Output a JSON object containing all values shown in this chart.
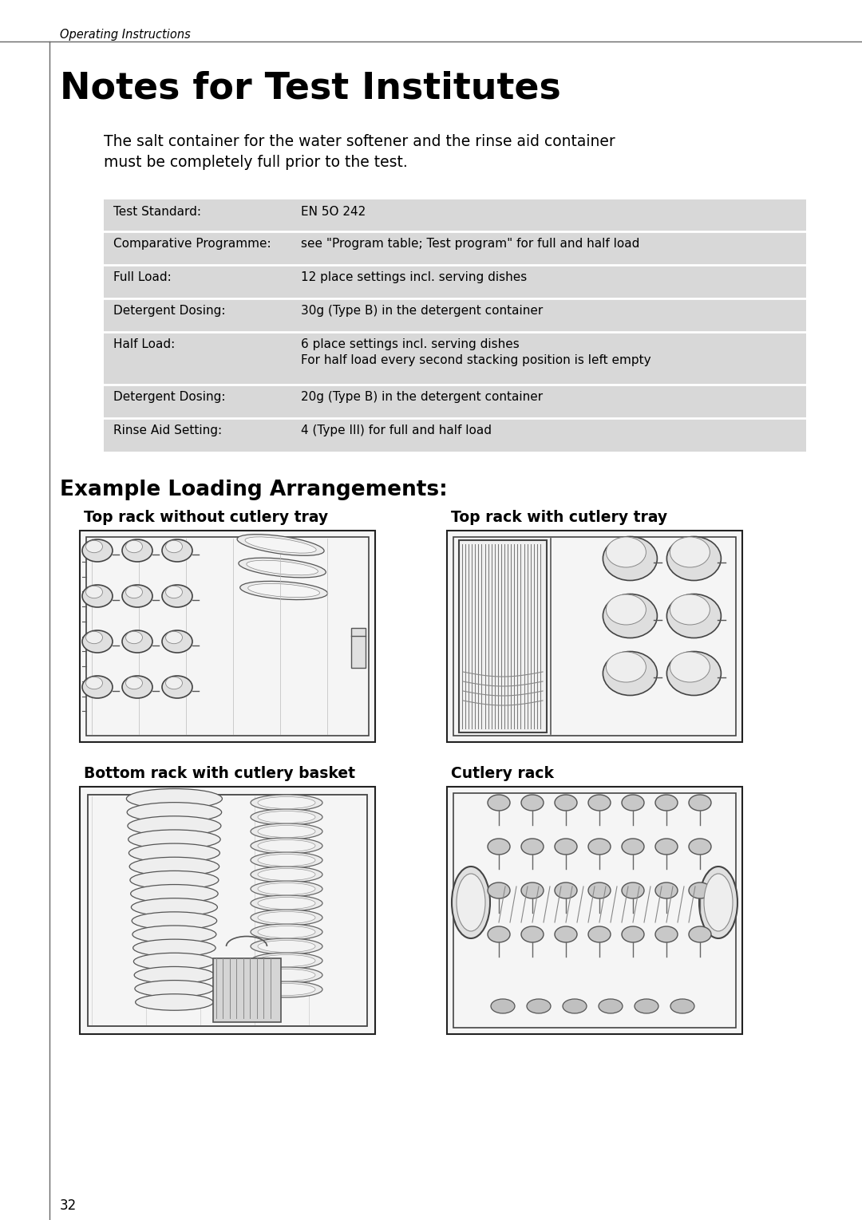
{
  "page_bg": "#ffffff",
  "header_text": "Operating Instructions",
  "title": "Notes for Test Institutes",
  "intro_line1": "The salt container for the water softener and the rinse aid container",
  "intro_line2": "must be completely full prior to the test.",
  "table_rows": [
    [
      "Test Standard:",
      "EN 5O 242"
    ],
    [
      "Comparative Programme:",
      "see \"Program table; Test program\" for full and half load"
    ],
    [
      "Full Load:",
      "12 place settings incl. serving dishes"
    ],
    [
      "Detergent Dosing:",
      "30g (Type B) in the detergent container"
    ],
    [
      "Half Load:",
      "6 place settings incl. serving dishes\nFor half load every second stacking position is left empty"
    ],
    [
      "Detergent Dosing:",
      "20g (Type B) in the detergent container"
    ],
    [
      "Rinse Aid Setting:",
      "4 (Type III) for full and half load"
    ]
  ],
  "section_title": "Example Loading Arrangements:",
  "img_label_tl": "Top rack without cutlery tray",
  "img_label_tr": "Top rack with cutlery tray",
  "img_label_bl": "Bottom rack with cutlery basket",
  "img_label_br": "Cutlery rack",
  "footer_page": "32",
  "table_bg": "#d8d8d8",
  "row_sep_color": "#ffffff",
  "col_sep_color": "#ffffff"
}
